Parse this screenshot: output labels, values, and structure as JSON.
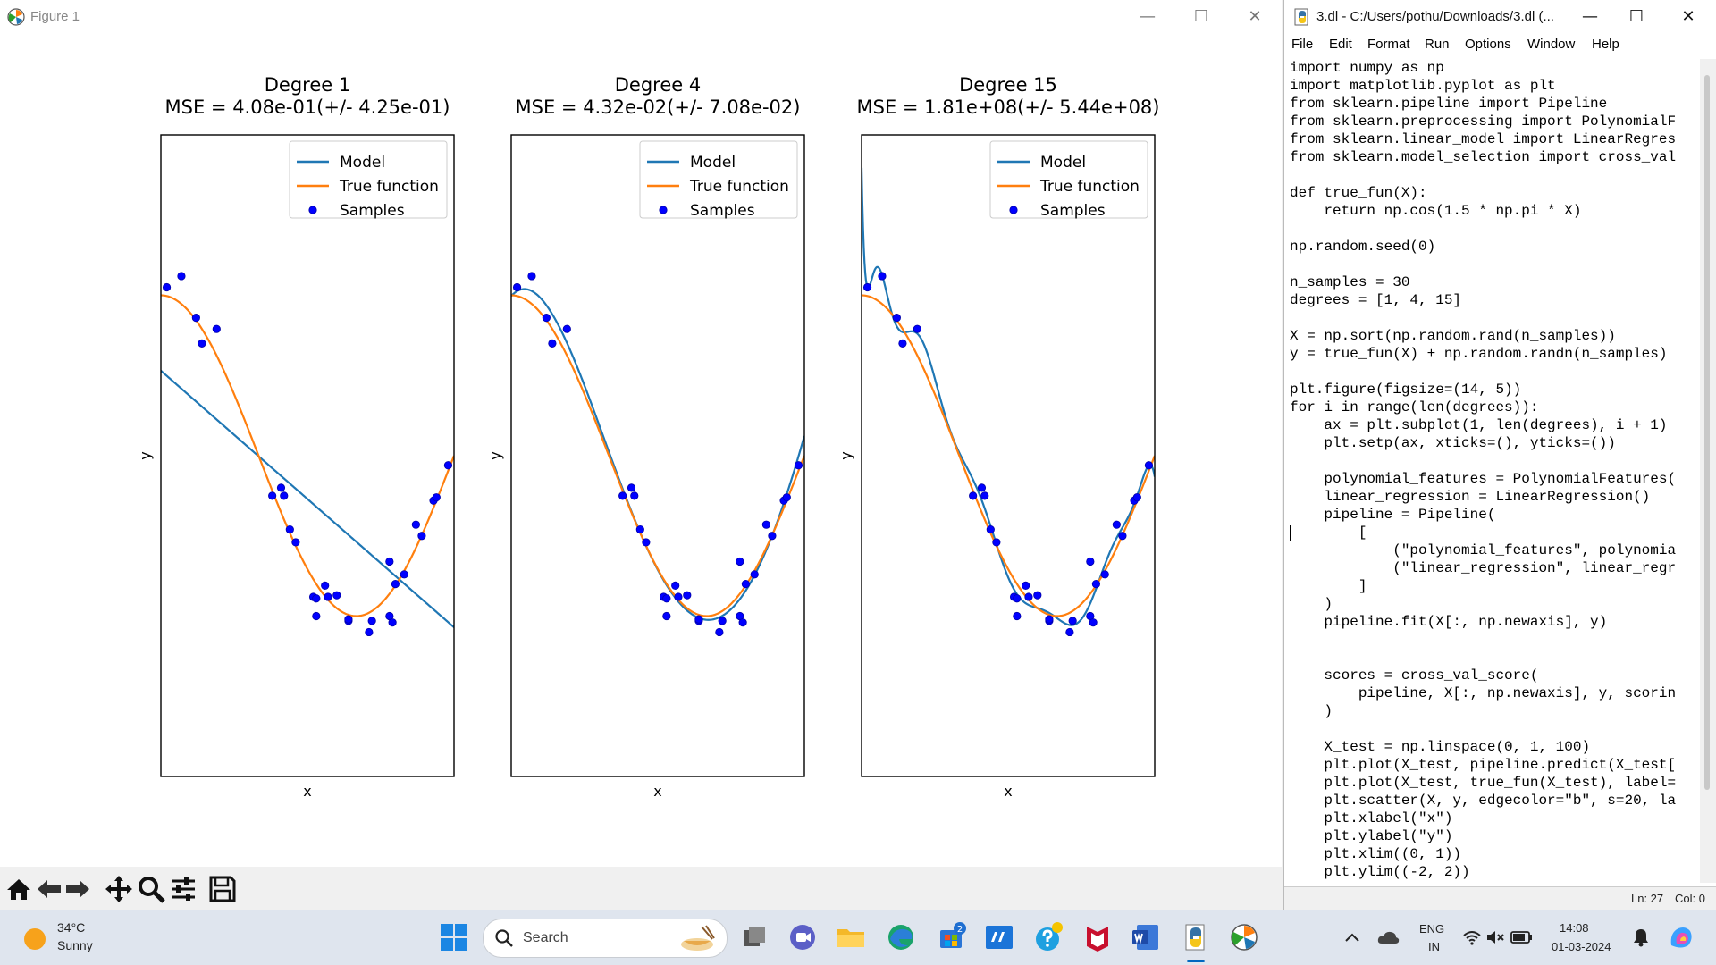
{
  "figure_window": {
    "title": "Figure 1",
    "controls": [
      "—",
      "☐",
      "✕"
    ]
  },
  "toolbar": {
    "buttons": [
      "home-icon",
      "back-arrow-icon",
      "forward-arrow-icon",
      "pan-icon",
      "zoom-icon",
      "configure-subplots-icon",
      "save-icon"
    ]
  },
  "chart_data": [
    {
      "type": "scatter",
      "title": "Degree 1",
      "subtitle": "MSE = 4.08e-01(+/- 4.25e-01)",
      "xlabel": "x",
      "ylabel": "y",
      "xlim": [
        0,
        1
      ],
      "ylim": [
        -2,
        2
      ],
      "legend": {
        "placement": "top-right",
        "entries": [
          "Model",
          "True function",
          "Samples"
        ]
      },
      "series": [
        {
          "name": "Model",
          "kind": "line",
          "color": "#1f77b4",
          "x": [
            0,
            1
          ],
          "y": [
            0.53,
            -1.07
          ]
        },
        {
          "name": "True function",
          "kind": "line",
          "color": "#ff7f0e",
          "fn": "cos(1.5*pi*x)"
        },
        {
          "name": "Samples",
          "kind": "scatter",
          "color": "#0000ff",
          "x": [
            0.02,
            0.07,
            0.12,
            0.14,
            0.19,
            0.38,
            0.41,
            0.42,
            0.44,
            0.46,
            0.52,
            0.53,
            0.53,
            0.56,
            0.57,
            0.6,
            0.64,
            0.64,
            0.71,
            0.72,
            0.78,
            0.78,
            0.79,
            0.8,
            0.83,
            0.87,
            0.89,
            0.93,
            0.94,
            0.98
          ],
          "y": [
            1.05,
            1.12,
            0.86,
            0.7,
            0.79,
            -0.25,
            -0.2,
            -0.25,
            -0.46,
            -0.54,
            -0.88,
            -0.89,
            -1.0,
            -0.81,
            -0.88,
            -0.87,
            -1.03,
            -1.02,
            -1.1,
            -1.03,
            -0.66,
            -1.0,
            -1.04,
            -0.8,
            -0.74,
            -0.43,
            -0.5,
            -0.28,
            -0.26,
            -0.06
          ]
        }
      ]
    },
    {
      "type": "scatter",
      "title": "Degree 4",
      "subtitle": "MSE = 4.32e-02(+/- 7.08e-02)",
      "xlabel": "x",
      "ylabel": "y",
      "xlim": [
        0,
        1
      ],
      "ylim": [
        -2,
        2
      ],
      "legend": {
        "placement": "top-right",
        "entries": [
          "Model",
          "True function",
          "Samples"
        ]
      },
      "series": [
        {
          "name": "Model",
          "kind": "line",
          "color": "#1f77b4",
          "fn": "degree4-fit"
        },
        {
          "name": "True function",
          "kind": "line",
          "color": "#ff7f0e",
          "fn": "cos(1.5*pi*x)"
        },
        {
          "name": "Samples",
          "kind": "scatter",
          "color": "#0000ff",
          "same_as": 0
        }
      ]
    },
    {
      "type": "scatter",
      "title": "Degree 15",
      "subtitle": "MSE = 1.81e+08(+/- 5.44e+08)",
      "xlabel": "x",
      "ylabel": "y",
      "xlim": [
        0,
        1
      ],
      "ylim": [
        -2,
        2
      ],
      "legend": {
        "placement": "top-right",
        "entries": [
          "Model",
          "True function",
          "Samples"
        ]
      },
      "series": [
        {
          "name": "Model",
          "kind": "line",
          "color": "#1f77b4",
          "fn": "degree15-fit"
        },
        {
          "name": "True function",
          "kind": "line",
          "color": "#ff7f0e",
          "fn": "cos(1.5*pi*x)"
        },
        {
          "name": "Samples",
          "kind": "scatter",
          "color": "#0000ff",
          "same_as": 0
        }
      ]
    }
  ],
  "editor": {
    "title": "3.dl - C:/Users/pothu/Downloads/3.dl (...",
    "controls": [
      "—",
      "☐",
      "✕"
    ],
    "menu": [
      "File",
      "Edit",
      "Format",
      "Run",
      "Options",
      "Window",
      "Help"
    ],
    "code_lines": [
      "import numpy as np",
      "import matplotlib.pyplot as plt",
      "from sklearn.pipeline import Pipeline",
      "from sklearn.preprocessing import PolynomialF",
      "from sklearn.linear_model import LinearRegres",
      "from sklearn.model_selection import cross_val",
      "",
      "def true_fun(X):",
      "    return np.cos(1.5 * np.pi * X)",
      "",
      "np.random.seed(0)",
      "",
      "n_samples = 30",
      "degrees = [1, 4, 15]",
      "",
      "X = np.sort(np.random.rand(n_samples))",
      "y = true_fun(X) + np.random.randn(n_samples)",
      "",
      "plt.figure(figsize=(14, 5))",
      "for i in range(len(degrees)):",
      "    ax = plt.subplot(1, len(degrees), i + 1)",
      "    plt.setp(ax, xticks=(), yticks=())",
      "",
      "    polynomial_features = PolynomialFeatures(",
      "    linear_regression = LinearRegression()",
      "    pipeline = Pipeline(",
      "        [",
      "            (\"polynomial_features\", polynomia",
      "            (\"linear_regression\", linear_regr",
      "        ]",
      "    )",
      "    pipeline.fit(X[:, np.newaxis], y)",
      "",
      "",
      "    scores = cross_val_score(",
      "        pipeline, X[:, np.newaxis], y, scorin",
      "    )",
      "",
      "    X_test = np.linspace(0, 1, 100)",
      "    plt.plot(X_test, pipeline.predict(X_test[",
      "    plt.plot(X_test, true_fun(X_test), label=",
      "    plt.scatter(X, y, edgecolor=\"b\", s=20, la",
      "    plt.xlabel(\"x\")",
      "    plt.ylabel(\"y\")",
      "    plt.xlim((0, 1))",
      "    plt.ylim((-2, 2))"
    ],
    "status": {
      "line": "Ln: 27",
      "col": "Col: 0"
    }
  },
  "taskbar": {
    "weather": {
      "temp": "34°C",
      "condition": "Sunny"
    },
    "search_placeholder": "Search",
    "store_badge": "2",
    "lang": {
      "line1": "ENG",
      "line2": "IN"
    },
    "clock": {
      "time": "14:08",
      "date": "01-03-2024"
    },
    "accent": "#0067c0"
  }
}
